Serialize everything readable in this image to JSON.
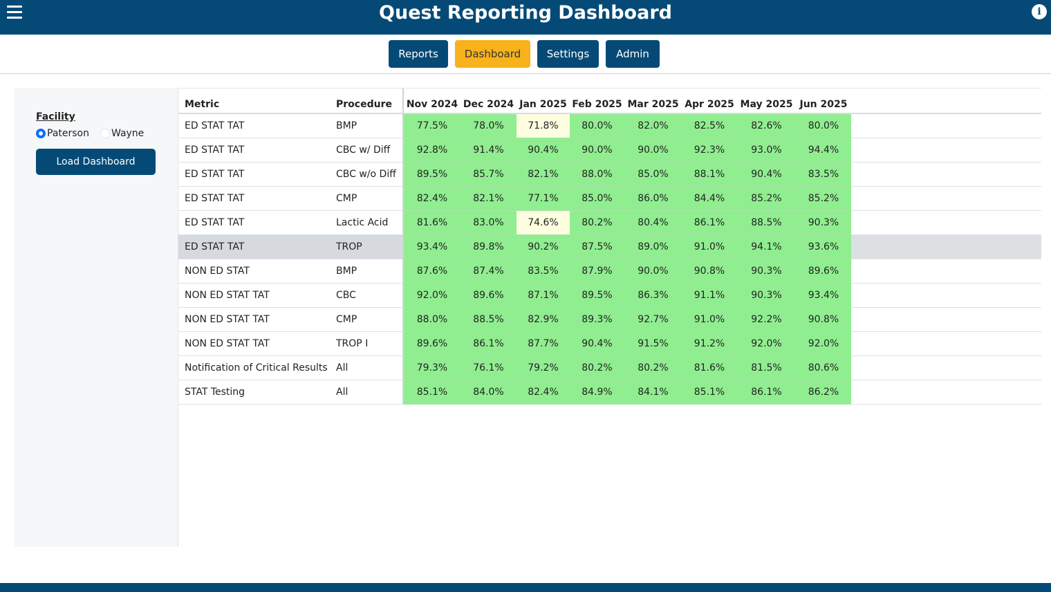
{
  "header": {
    "title": "Quest Reporting Dashboard",
    "menu_icon": "hamburger-menu-icon",
    "info_icon": "info-icon",
    "info_glyph": "i"
  },
  "nav": {
    "tabs": [
      {
        "label": "Reports",
        "active": false
      },
      {
        "label": "Dashboard",
        "active": true
      },
      {
        "label": "Settings",
        "active": false
      },
      {
        "label": "Admin",
        "active": false
      }
    ]
  },
  "sidebar": {
    "facility_label": "Facility",
    "options": [
      {
        "label": "Paterson",
        "checked": true
      },
      {
        "label": "Wayne",
        "checked": false
      }
    ],
    "load_button": "Load Dashboard"
  },
  "table": {
    "headers": {
      "metric": "Metric",
      "procedure": "Procedure",
      "months": [
        "Nov 2024",
        "Dec 2024",
        "Jan 2025",
        "Feb 2025",
        "Mar 2025",
        "Apr 2025",
        "May 2025",
        "Jun 2025"
      ]
    },
    "rows": [
      {
        "metric": "ED STAT TAT",
        "procedure": "BMP",
        "values": [
          "77.5%",
          "78.0%",
          "71.8%",
          "80.0%",
          "82.0%",
          "82.5%",
          "82.6%",
          "80.0%"
        ],
        "warn": [
          2
        ]
      },
      {
        "metric": "ED STAT TAT",
        "procedure": "CBC w/ Diff",
        "values": [
          "92.8%",
          "91.4%",
          "90.4%",
          "90.0%",
          "90.0%",
          "92.3%",
          "93.0%",
          "94.4%"
        ],
        "warn": []
      },
      {
        "metric": "ED STAT TAT",
        "procedure": "CBC w/o Diff",
        "values": [
          "89.5%",
          "85.7%",
          "82.1%",
          "88.0%",
          "85.0%",
          "88.1%",
          "90.4%",
          "83.5%"
        ],
        "warn": []
      },
      {
        "metric": "ED STAT TAT",
        "procedure": "CMP",
        "values": [
          "82.4%",
          "82.1%",
          "77.1%",
          "85.0%",
          "86.0%",
          "84.4%",
          "85.2%",
          "85.2%"
        ],
        "warn": []
      },
      {
        "metric": "ED STAT TAT",
        "procedure": "Lactic Acid",
        "values": [
          "81.6%",
          "83.0%",
          "74.6%",
          "80.2%",
          "80.4%",
          "86.1%",
          "88.5%",
          "90.3%"
        ],
        "warn": [
          2
        ]
      },
      {
        "metric": "ED STAT TAT",
        "procedure": "TROP",
        "values": [
          "93.4%",
          "89.8%",
          "90.2%",
          "87.5%",
          "89.0%",
          "91.0%",
          "94.1%",
          "93.6%"
        ],
        "warn": [],
        "highlighted": true
      },
      {
        "metric": "NON ED STAT",
        "procedure": "BMP",
        "values": [
          "87.6%",
          "87.4%",
          "83.5%",
          "87.9%",
          "90.0%",
          "90.8%",
          "90.3%",
          "89.6%"
        ],
        "warn": []
      },
      {
        "metric": "NON ED STAT TAT",
        "procedure": "CBC",
        "values": [
          "92.0%",
          "89.6%",
          "87.1%",
          "89.5%",
          "86.3%",
          "91.1%",
          "90.3%",
          "93.4%"
        ],
        "warn": []
      },
      {
        "metric": "NON ED STAT TAT",
        "procedure": "CMP",
        "values": [
          "88.0%",
          "88.5%",
          "82.9%",
          "89.3%",
          "92.7%",
          "91.0%",
          "92.2%",
          "90.8%"
        ],
        "warn": []
      },
      {
        "metric": "NON ED STAT TAT",
        "procedure": "TROP I",
        "values": [
          "89.6%",
          "86.1%",
          "87.7%",
          "90.4%",
          "91.5%",
          "91.2%",
          "92.0%",
          "92.0%"
        ],
        "warn": []
      },
      {
        "metric": "Notification of Critical Results",
        "procedure": "All",
        "values": [
          "79.3%",
          "76.1%",
          "79.2%",
          "80.2%",
          "80.2%",
          "81.6%",
          "81.5%",
          "80.6%"
        ],
        "warn": []
      },
      {
        "metric": "STAT Testing",
        "procedure": "All",
        "values": [
          "85.1%",
          "84.0%",
          "82.4%",
          "84.9%",
          "84.1%",
          "85.1%",
          "86.1%",
          "86.2%"
        ],
        "warn": []
      }
    ]
  },
  "colors": {
    "brand": "#054a77",
    "active_tab": "#f8b21c",
    "cell_good": "#90ee90",
    "cell_warn": "#fefee0"
  }
}
